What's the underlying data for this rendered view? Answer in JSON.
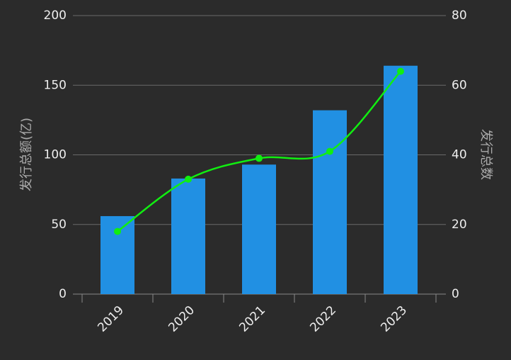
{
  "chart_data": {
    "type": "bar",
    "categories": [
      "2019",
      "2020",
      "2021",
      "2022",
      "2023"
    ],
    "y_label": "发行总额(亿)",
    "y2_label": "发行总数",
    "series": [
      {
        "type": "bar",
        "color": "#2190e3",
        "values": [
          56,
          83,
          93,
          132,
          164
        ]
      },
      {
        "type": "line",
        "axis": "y2",
        "color": "#11ee11",
        "values": [
          18,
          33,
          39,
          41,
          64
        ]
      }
    ],
    "ylim": [
      0,
      200
    ],
    "yticks": [
      0,
      50,
      100,
      150,
      200
    ],
    "y2lim": [
      0,
      80
    ],
    "y2ticks": [
      0,
      20,
      40,
      60,
      80
    ],
    "grid": true
  }
}
